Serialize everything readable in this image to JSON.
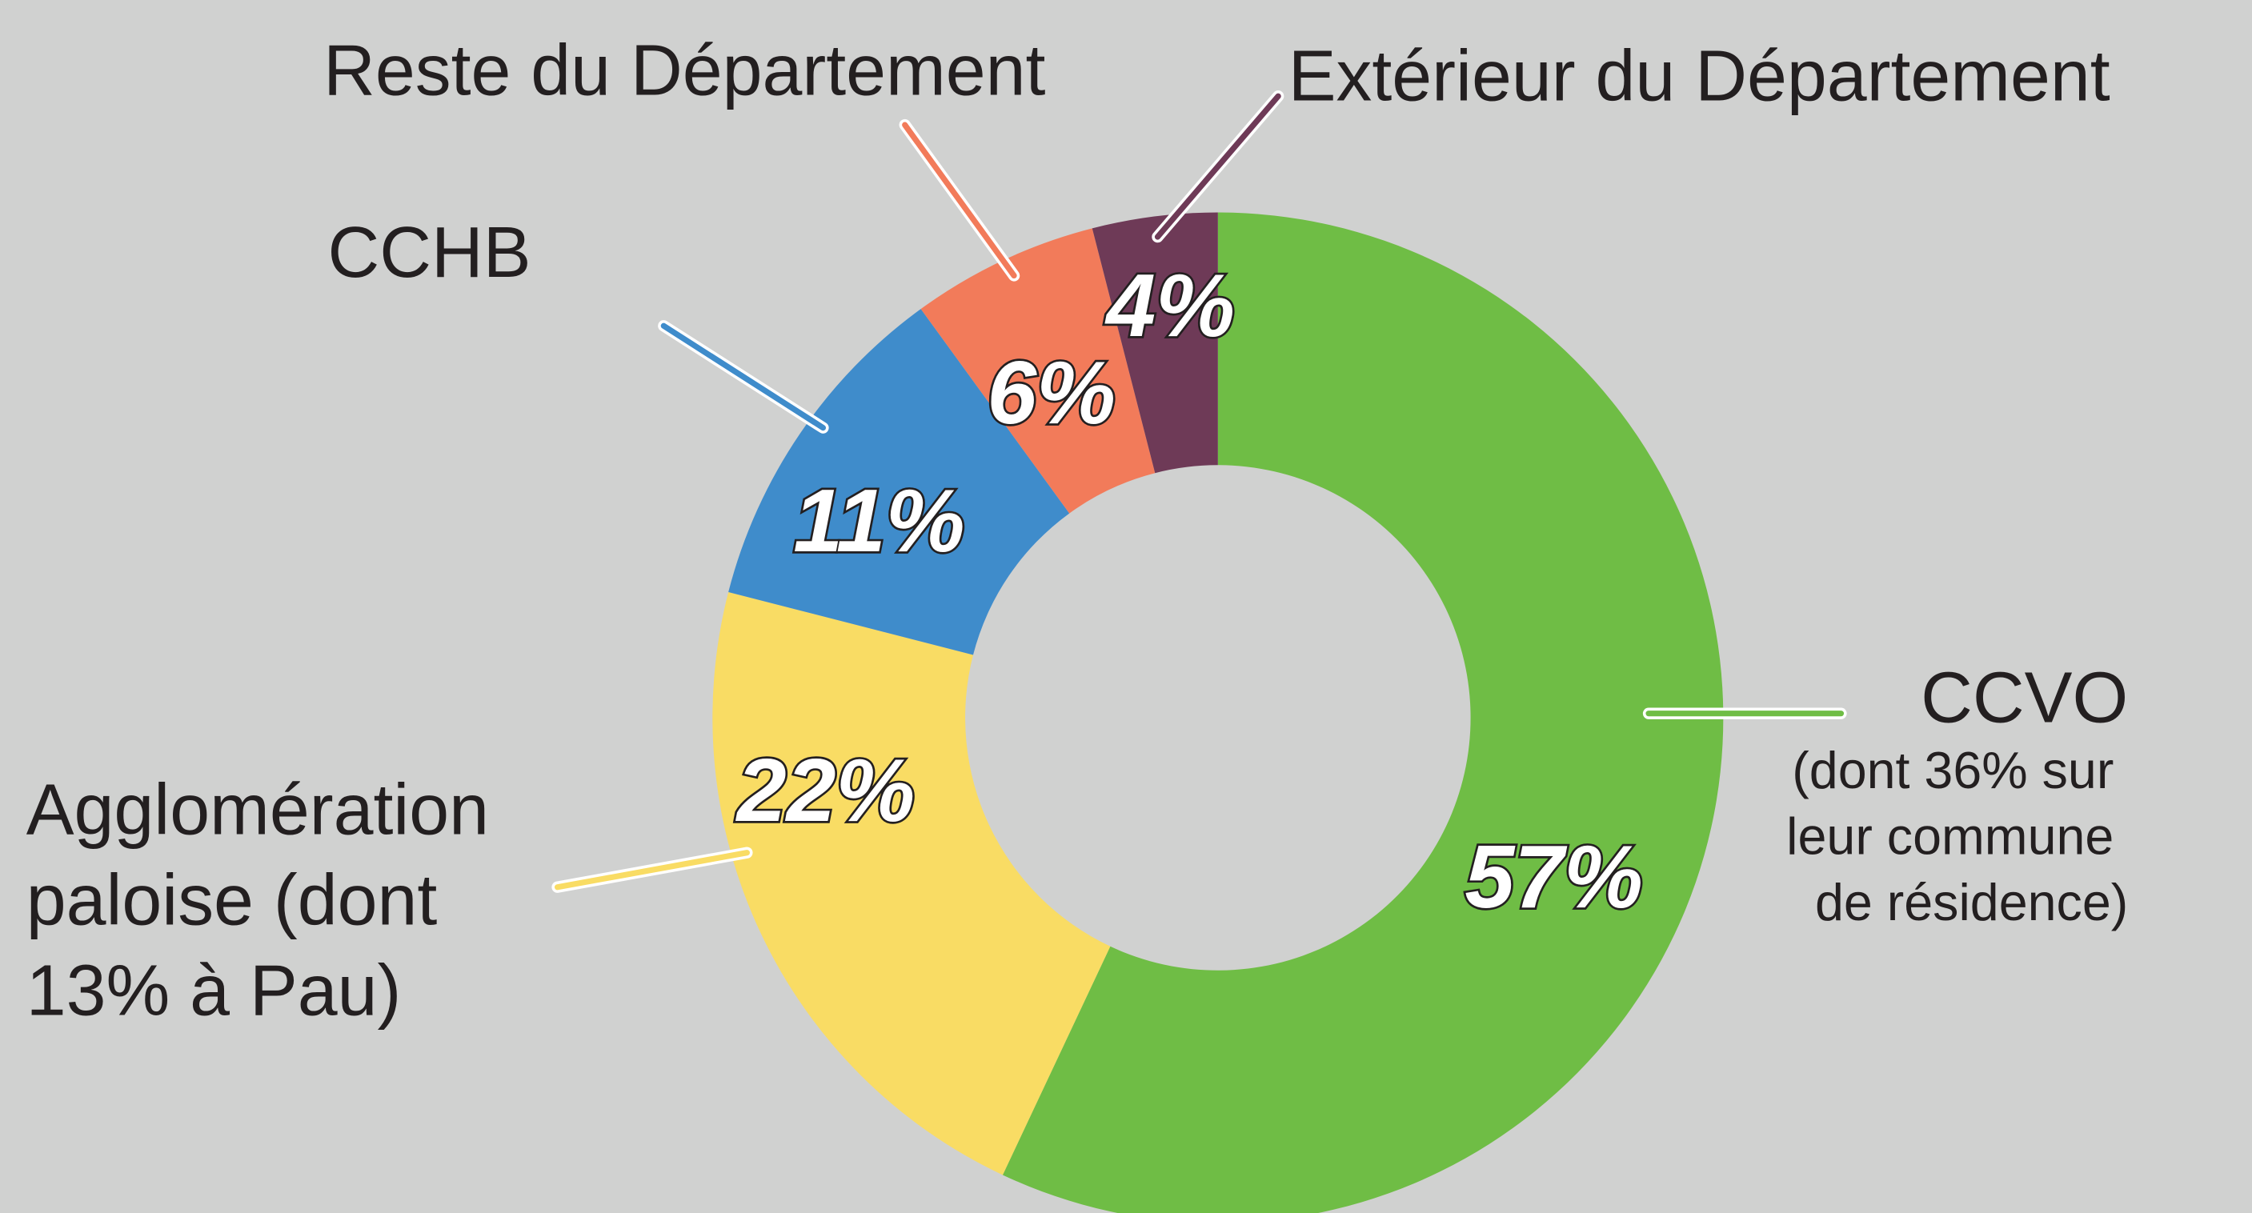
{
  "chart_data": {
    "type": "donut",
    "categories": [
      "CCVO",
      "Agglomération paloise (dont 13% à Pau)",
      "CCHB",
      "Reste du Département",
      "Extérieur du Département"
    ],
    "values": [
      57,
      22,
      11,
      6,
      4
    ],
    "value_labels": [
      "57%",
      "22%",
      "11%",
      "6%",
      "4%"
    ],
    "colors": [
      "#6fbd45",
      "#f9dc64",
      "#3f8ccb",
      "#f27b5a",
      "#6e3a57"
    ],
    "annotations": [
      "(dont 36% sur leur commune de résidence)"
    ]
  }
}
